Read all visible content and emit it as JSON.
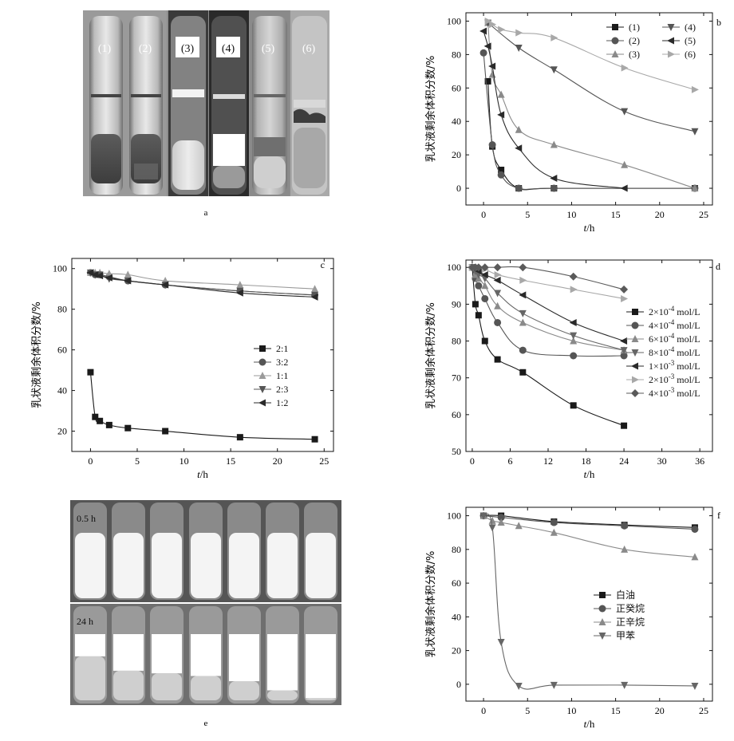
{
  "figure": {
    "panel_a": {
      "tag": "a",
      "tube_labels": [
        "(1)",
        "(2)",
        "(3)",
        "(4)",
        "(5)",
        "(6)"
      ]
    },
    "panel_e": {
      "tag": "e",
      "row_labels": [
        "0.5 h",
        "24 h"
      ]
    }
  },
  "colors": {
    "axis": "#111111",
    "black_series": "#1a1a1a",
    "dark_gray_series": "#555555",
    "gray_series": "#7a7a7a",
    "light_gray_series": "#a8a8a8"
  },
  "chart_data": [
    {
      "id": "b",
      "type": "line",
      "tag": "b",
      "xlabel": "t/h",
      "ylabel": "乳状液剩余体积分数/%",
      "xlim": [
        -2,
        26
      ],
      "ylim": [
        -10,
        105
      ],
      "xticks": [
        0,
        5,
        10,
        15,
        20,
        25
      ],
      "yticks": [
        0,
        20,
        40,
        60,
        80,
        100
      ],
      "legend_position": "top-right",
      "legend_columns": 2,
      "series": [
        {
          "name": "(1)",
          "marker": "square",
          "color": "#1a1a1a",
          "x": [
            0.5,
            1,
            2,
            4,
            8,
            24
          ],
          "y": [
            64,
            25,
            11,
            0,
            0,
            0
          ]
        },
        {
          "name": "(2)",
          "marker": "circle",
          "color": "#555555",
          "x": [
            0,
            1,
            2,
            4,
            8,
            24
          ],
          "y": [
            81,
            26,
            8,
            0,
            0,
            0
          ]
        },
        {
          "name": "(3)",
          "marker": "triangle-up",
          "color": "#8a8a8a",
          "x": [
            0.5,
            1,
            2,
            4,
            8,
            16,
            24
          ],
          "y": [
            99,
            68,
            56,
            35,
            26,
            14,
            0
          ]
        },
        {
          "name": "(4)",
          "marker": "triangle-down",
          "color": "#555555",
          "x": [
            0.5,
            4,
            8,
            16,
            24
          ],
          "y": [
            99,
            84,
            71,
            46,
            34
          ]
        },
        {
          "name": "(5)",
          "marker": "triangle-left",
          "color": "#2a2a2a",
          "x": [
            0,
            0.5,
            1,
            2,
            4,
            8,
            16
          ],
          "y": [
            94,
            85,
            73,
            44,
            24,
            6,
            0
          ]
        },
        {
          "name": "(6)",
          "marker": "triangle-right",
          "color": "#a8a8a8",
          "x": [
            0.5,
            1,
            2,
            4,
            8,
            16,
            24
          ],
          "y": [
            100,
            98,
            95,
            93,
            90,
            72,
            59
          ]
        }
      ]
    },
    {
      "id": "c",
      "type": "line",
      "tag": "c",
      "xlabel": "t/h",
      "ylabel": "乳状液剩余体积分数/%",
      "xlim": [
        -2,
        26
      ],
      "ylim": [
        10,
        105
      ],
      "xticks": [
        0,
        5,
        10,
        15,
        20,
        25
      ],
      "yticks": [
        20,
        40,
        60,
        80,
        100
      ],
      "legend_position": "center-right",
      "legend_columns": 1,
      "series": [
        {
          "name": "2:1",
          "marker": "square",
          "color": "#1a1a1a",
          "x": [
            0,
            0.5,
            1,
            2,
            4,
            8,
            16,
            24
          ],
          "y": [
            49,
            27,
            25,
            23,
            21.5,
            20,
            17,
            16
          ]
        },
        {
          "name": "3:2",
          "marker": "circle",
          "color": "#555555",
          "x": [
            0,
            0.5,
            1,
            2,
            4,
            8,
            16,
            24
          ],
          "y": [
            98,
            97,
            97,
            96,
            94,
            92,
            89,
            87
          ]
        },
        {
          "name": "1:1",
          "marker": "triangle-up",
          "color": "#9a9a9a",
          "x": [
            0,
            0.5,
            1,
            2,
            4,
            8,
            16,
            24
          ],
          "y": [
            98,
            98,
            98,
            97.5,
            97,
            94,
            92,
            90
          ]
        },
        {
          "name": "2:3",
          "marker": "triangle-down",
          "color": "#555555",
          "x": [
            0,
            0.5,
            1,
            2,
            4,
            8,
            16,
            24
          ],
          "y": [
            98,
            97,
            97,
            95,
            94,
            92,
            89,
            87
          ]
        },
        {
          "name": "1:2",
          "marker": "triangle-left",
          "color": "#2a2a2a",
          "x": [
            0,
            0.5,
            1,
            2,
            4,
            8,
            16,
            24
          ],
          "y": [
            98,
            97,
            96.5,
            95.5,
            94,
            92,
            88,
            86
          ]
        }
      ]
    },
    {
      "id": "d",
      "type": "line",
      "tag": "d",
      "xlabel": "t/h",
      "ylabel": "乳状液剩余体积分数/%",
      "xlim": [
        -1,
        38
      ],
      "ylim": [
        50,
        102
      ],
      "xticks": [
        0,
        6,
        12,
        18,
        24,
        30,
        36
      ],
      "yticks": [
        50,
        60,
        70,
        80,
        90,
        100
      ],
      "legend_position": "right",
      "legend_columns": 1,
      "series": [
        {
          "name": "2×10⁻⁴ mol/L",
          "marker": "square",
          "color": "#1a1a1a",
          "x": [
            0,
            0.5,
            1,
            2,
            4,
            8,
            16,
            24
          ],
          "y": [
            100,
            90,
            87,
            80,
            75,
            71.5,
            62.5,
            57
          ]
        },
        {
          "name": "4×10⁻⁴ mol/L",
          "marker": "circle",
          "color": "#555555",
          "x": [
            0,
            0.5,
            1,
            2,
            4,
            8,
            16,
            24
          ],
          "y": [
            100,
            97,
            95,
            91.5,
            85,
            77.5,
            76,
            76
          ]
        },
        {
          "name": "6×10⁻⁴ mol/L",
          "marker": "triangle-up",
          "color": "#8a8a8a",
          "x": [
            0,
            0.5,
            1,
            2,
            4,
            8,
            16,
            24
          ],
          "y": [
            100,
            98,
            97,
            95,
            89.5,
            85,
            80,
            77.5
          ]
        },
        {
          "name": "8×10⁻⁴ mol/L",
          "marker": "triangle-down",
          "color": "#666666",
          "x": [
            0,
            0.5,
            1,
            2,
            4,
            8,
            16,
            24
          ],
          "y": [
            100,
            99,
            98,
            97,
            93,
            87.5,
            81.5,
            77.5
          ]
        },
        {
          "name": "1×10⁻³ mol/L",
          "marker": "triangle-left",
          "color": "#2a2a2a",
          "x": [
            0,
            0.5,
            1,
            2,
            4,
            8,
            16,
            24
          ],
          "y": [
            100,
            99.5,
            99,
            98,
            96.5,
            92.5,
            85,
            80
          ]
        },
        {
          "name": "2×10⁻³ mol/L",
          "marker": "triangle-right",
          "color": "#a8a8a8",
          "x": [
            0,
            0.5,
            1,
            2,
            4,
            8,
            16,
            24
          ],
          "y": [
            100,
            100,
            100,
            99.5,
            98,
            96.5,
            94,
            91.5
          ]
        },
        {
          "name": "4×10⁻³ mol/L",
          "marker": "diamond",
          "color": "#5a5a5a",
          "x": [
            0,
            0.5,
            1,
            2,
            4,
            8,
            16,
            24
          ],
          "y": [
            100,
            100,
            100,
            100,
            100,
            100,
            97.5,
            94
          ]
        }
      ]
    },
    {
      "id": "f",
      "type": "line",
      "tag": "f",
      "xlabel": "t/h",
      "ylabel": "乳状液剩余体积分数/%",
      "xlim": [
        -2,
        26
      ],
      "ylim": [
        -10,
        105
      ],
      "xticks": [
        0,
        5,
        10,
        15,
        20,
        25
      ],
      "yticks": [
        0,
        20,
        40,
        60,
        80,
        100
      ],
      "legend_position": "center",
      "legend_columns": 1,
      "series": [
        {
          "name": "白油",
          "marker": "square",
          "color": "#1a1a1a",
          "x": [
            0,
            2,
            8,
            16,
            24
          ],
          "y": [
            100,
            100,
            96.5,
            94.5,
            93
          ]
        },
        {
          "name": "正癸烷",
          "marker": "circle",
          "color": "#555555",
          "x": [
            0,
            2,
            8,
            16,
            24
          ],
          "y": [
            100,
            99,
            96,
            94,
            92
          ]
        },
        {
          "name": "正辛烷",
          "marker": "triangle-up",
          "color": "#8a8a8a",
          "x": [
            0,
            1,
            2,
            4,
            8,
            16,
            24
          ],
          "y": [
            100,
            97,
            96,
            94,
            90,
            80,
            75.5
          ]
        },
        {
          "name": "甲苯",
          "marker": "triangle-down",
          "color": "#666666",
          "x": [
            0,
            1,
            2,
            4,
            8,
            16,
            24
          ],
          "y": [
            100,
            93,
            25,
            -1,
            -0.5,
            -0.5,
            -1
          ]
        }
      ]
    }
  ]
}
